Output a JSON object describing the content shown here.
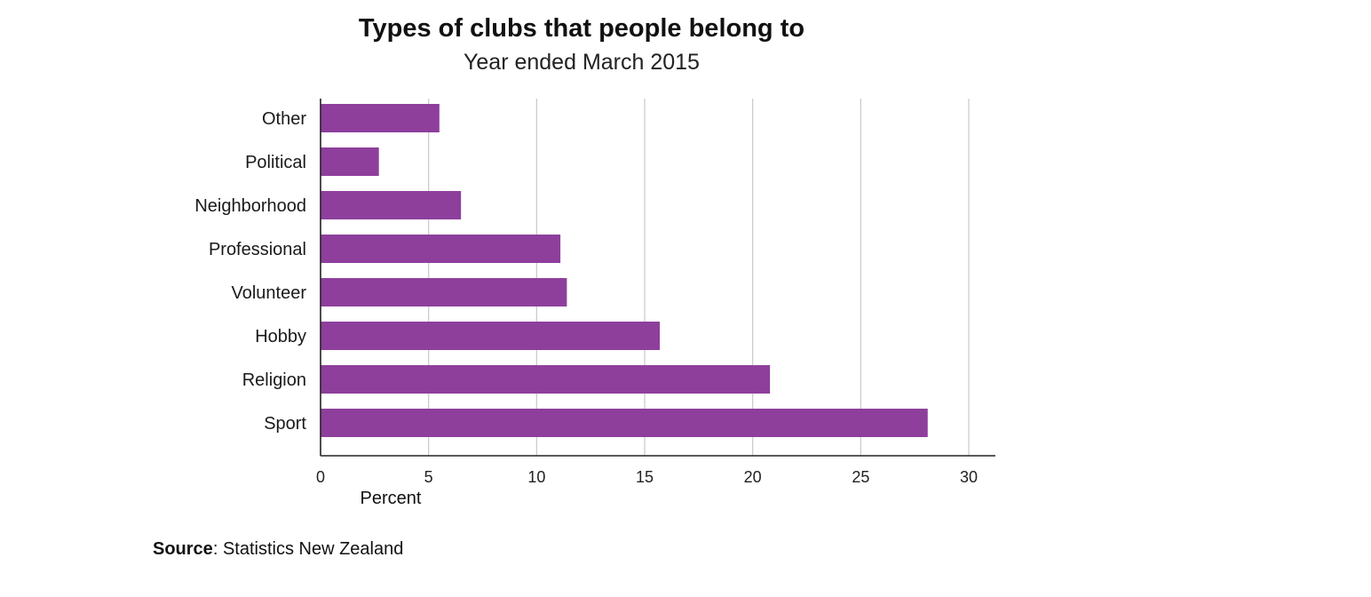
{
  "chart_data": {
    "type": "bar",
    "orientation": "horizontal",
    "title": "Types of clubs that people belong to",
    "subtitle": "Year ended March 2015",
    "xlabel": "Percent",
    "ylabel": "",
    "xlim": [
      0,
      30
    ],
    "xticks": [
      0,
      5,
      10,
      15,
      20,
      25,
      30
    ],
    "grid": "vertical",
    "bar_color": "#8e3f9c",
    "categories": [
      "Other",
      "Political",
      "Neighborhood",
      "Professional",
      "Volunteer",
      "Hobby",
      "Religion",
      "Sport"
    ],
    "values": [
      5.5,
      2.7,
      6.5,
      11.1,
      11.4,
      15.7,
      20.8,
      28.1
    ]
  },
  "source": {
    "label": "Source",
    "text": "Statistics New Zealand"
  }
}
